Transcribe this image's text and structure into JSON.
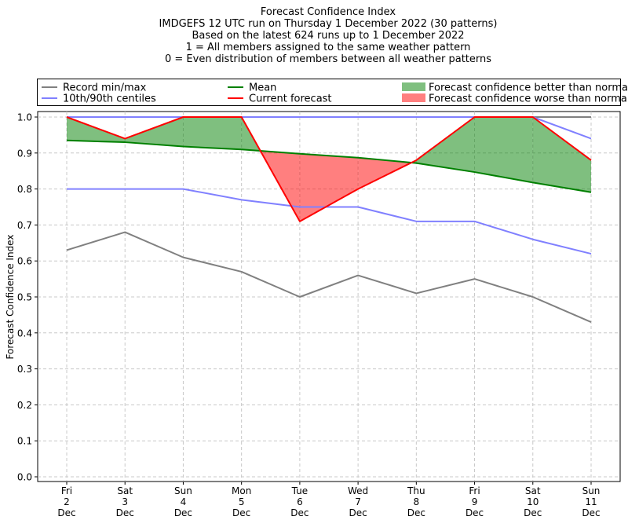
{
  "chart_data": {
    "type": "line",
    "title_lines": [
      "Forecast Confidence Index",
      "IMDGEFS 12 UTC run on Thursday 1 December 2022 (30 patterns)",
      "Based on the latest 624 runs up to 1 December 2022",
      "1 = All members assigned to the same weather pattern",
      "0 = Even distribution of members between all weather patterns"
    ],
    "xlabel": "",
    "ylabel": "Forecast Confidence Index",
    "ylim": [
      0.0,
      1.0
    ],
    "yticks": [
      0.0,
      0.1,
      0.2,
      0.3,
      0.4,
      0.5,
      0.6,
      0.7,
      0.8,
      0.9,
      1.0
    ],
    "ytick_labels": [
      "0.0",
      "0.1",
      "0.2",
      "0.3",
      "0.4",
      "0.5",
      "0.6",
      "0.7",
      "0.8",
      "0.9",
      "1.0"
    ],
    "grid": true,
    "legend_position": "top",
    "categories": [
      [
        "Fri",
        "2",
        "Dec"
      ],
      [
        "Sat",
        "3",
        "Dec"
      ],
      [
        "Sun",
        "4",
        "Dec"
      ],
      [
        "Mon",
        "5",
        "Dec"
      ],
      [
        "Tue",
        "6",
        "Dec"
      ],
      [
        "Wed",
        "7",
        "Dec"
      ],
      [
        "Thu",
        "8",
        "Dec"
      ],
      [
        "Fri",
        "9",
        "Dec"
      ],
      [
        "Sat",
        "10",
        "Dec"
      ],
      [
        "Sun",
        "11",
        "Dec"
      ]
    ],
    "series": [
      {
        "name": "Record min/max",
        "role": "record_min",
        "color": "#808080",
        "values": [
          0.63,
          0.68,
          0.61,
          0.57,
          0.5,
          0.56,
          0.51,
          0.55,
          0.5,
          0.43
        ]
      },
      {
        "role": "record_max",
        "color": "#808080",
        "values": [
          1.0,
          1.0,
          1.0,
          1.0,
          1.0,
          1.0,
          1.0,
          1.0,
          1.0,
          1.0
        ]
      },
      {
        "name": "10th/90th centiles",
        "role": "p10",
        "color": "#8080ff",
        "values": [
          0.8,
          0.8,
          0.8,
          0.77,
          0.75,
          0.75,
          0.71,
          0.71,
          0.66,
          0.62
        ]
      },
      {
        "role": "p90",
        "color": "#8080ff",
        "values": [
          1.0,
          1.0,
          1.0,
          1.0,
          1.0,
          1.0,
          1.0,
          1.0,
          1.0,
          0.94
        ]
      },
      {
        "name": "Mean",
        "role": "mean",
        "color": "#008000",
        "values": [
          0.935,
          0.93,
          0.918,
          0.91,
          0.898,
          0.887,
          0.872,
          0.847,
          0.818,
          0.791
        ]
      },
      {
        "name": "Current forecast",
        "role": "current",
        "color": "#ff0000",
        "values": [
          1.0,
          0.94,
          1.0,
          1.0,
          0.71,
          0.8,
          0.88,
          1.0,
          1.0,
          0.88
        ]
      }
    ],
    "fills": [
      {
        "name": "Forecast confidence better than normal",
        "color": "#008000",
        "opacity": 0.5
      },
      {
        "name": "Forecast confidence worse than normal",
        "color": "#ff0000",
        "opacity": 0.5
      }
    ]
  }
}
